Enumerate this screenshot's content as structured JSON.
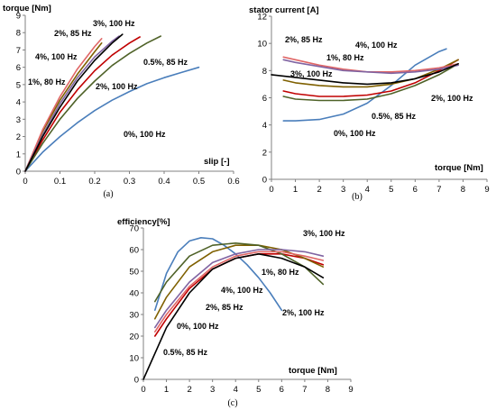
{
  "chart_data": [
    {
      "type": "line",
      "panel_label": "(a)",
      "ylabel": "torque [Nm]",
      "xlabel": "slip [-]",
      "xlim": [
        0,
        0.6
      ],
      "ylim": [
        0,
        9
      ],
      "xticks": [
        "0",
        "0.1",
        "0.2",
        "0.3",
        "0.4",
        "0.5",
        "0.6"
      ],
      "yticks": [
        "0",
        "1",
        "2",
        "3",
        "4",
        "5",
        "6",
        "7",
        "8",
        "9"
      ],
      "grid": false,
      "series": [
        {
          "name": "0%, 100 Hz",
          "color": "#4a7ebb",
          "x": [
            0,
            0.05,
            0.1,
            0.15,
            0.2,
            0.25,
            0.3,
            0.35,
            0.4,
            0.45,
            0.5
          ],
          "y": [
            0,
            1.1,
            2.0,
            2.8,
            3.5,
            4.1,
            4.6,
            5.05,
            5.4,
            5.7,
            6.0
          ]
        },
        {
          "name": "0.5%, 85 Hz",
          "color": "#c00000",
          "x": [
            0,
            0.05,
            0.1,
            0.15,
            0.2,
            0.25,
            0.3,
            0.33
          ],
          "y": [
            0,
            1.8,
            3.4,
            4.7,
            5.8,
            6.7,
            7.4,
            7.75
          ]
        },
        {
          "name": "1%, 80 Hz",
          "color": "#7f6000",
          "x": [
            0,
            0.05,
            0.1,
            0.15,
            0.2,
            0.22
          ],
          "y": [
            0,
            2.3,
            4.1,
            5.6,
            6.9,
            7.4
          ]
        },
        {
          "name": "2%, 100 Hz",
          "color": "#4f6228",
          "x": [
            0,
            0.05,
            0.1,
            0.15,
            0.2,
            0.25,
            0.3,
            0.35,
            0.39
          ],
          "y": [
            0,
            1.6,
            3.0,
            4.2,
            5.2,
            6.1,
            6.8,
            7.4,
            7.8
          ]
        },
        {
          "name": "2%, 85 Hz",
          "color": "#e06666",
          "x": [
            0,
            0.05,
            0.1,
            0.15,
            0.2,
            0.22
          ],
          "y": [
            0,
            2.4,
            4.3,
            5.9,
            7.2,
            7.65
          ]
        },
        {
          "name": "3%, 100 Hz",
          "color": "#8064a2",
          "x": [
            0,
            0.05,
            0.1,
            0.15,
            0.2,
            0.25,
            0.27
          ],
          "y": [
            0,
            2.1,
            3.9,
            5.4,
            6.6,
            7.5,
            7.8
          ]
        },
        {
          "name": "4%, 100 Hz",
          "color": "#000000",
          "x": [
            0,
            0.05,
            0.1,
            0.15,
            0.2,
            0.25,
            0.28
          ],
          "y": [
            0,
            2.0,
            3.7,
            5.2,
            6.4,
            7.4,
            7.9
          ]
        }
      ],
      "annotations": [
        "3%, 100 Hz",
        "2%, 85 Hz",
        "4%, 100 Hz",
        "0.5%, 85 Hz",
        "1%, 80 Hz",
        "2%, 100 Hz",
        "0%, 100 Hz"
      ]
    },
    {
      "type": "line",
      "panel_label": "(b)",
      "ylabel": "stator current [A]",
      "xlabel": "torque [Nm]",
      "xlim": [
        0,
        9
      ],
      "ylim": [
        0,
        12
      ],
      "xticks": [
        "0",
        "1",
        "2",
        "3",
        "4",
        "5",
        "6",
        "7",
        "8",
        "9"
      ],
      "yticks": [
        "0",
        "2",
        "4",
        "6",
        "8",
        "10",
        "12"
      ],
      "grid": false,
      "series": [
        {
          "name": "0%, 100 Hz",
          "color": "#4a7ebb",
          "x": [
            0.5,
            1,
            2,
            3,
            4,
            5,
            6,
            7,
            7.3
          ],
          "y": [
            4.3,
            4.3,
            4.4,
            4.8,
            5.6,
            6.9,
            8.4,
            9.4,
            9.6
          ]
        },
        {
          "name": "0.5%, 85 Hz",
          "color": "#c00000",
          "x": [
            0.5,
            1,
            2,
            3,
            4,
            5,
            6,
            7,
            7.8
          ],
          "y": [
            6.5,
            6.3,
            6.1,
            6.1,
            6.2,
            6.5,
            7.1,
            8.0,
            8.8
          ]
        },
        {
          "name": "1%, 80 Hz",
          "color": "#7f6000",
          "x": [
            0.5,
            1,
            2,
            3,
            4,
            5,
            6,
            7,
            7.8
          ],
          "y": [
            7.3,
            7.1,
            6.9,
            6.8,
            6.8,
            7.0,
            7.4,
            8.1,
            8.8
          ]
        },
        {
          "name": "2%, 100 Hz",
          "color": "#4f6228",
          "x": [
            0.5,
            1,
            2,
            3,
            4,
            5,
            6,
            7,
            7.8
          ],
          "y": [
            6.1,
            5.9,
            5.8,
            5.8,
            5.9,
            6.3,
            6.9,
            7.7,
            8.5
          ]
        },
        {
          "name": "2%, 85 Hz",
          "color": "#e06666",
          "x": [
            0.5,
            1,
            2,
            3,
            4,
            5,
            6,
            7,
            7.8
          ],
          "y": [
            9.0,
            8.8,
            8.4,
            8.1,
            7.9,
            7.9,
            8.0,
            8.2,
            8.5
          ]
        },
        {
          "name": "3%, 100 Hz",
          "color": "#8064a2",
          "x": [
            0.5,
            1,
            2,
            3,
            4,
            5,
            6,
            7,
            7.8
          ],
          "y": [
            8.8,
            8.6,
            8.3,
            8.0,
            7.9,
            7.8,
            7.9,
            8.1,
            8.4
          ]
        },
        {
          "name": "4%, 100 Hz",
          "color": "#000000",
          "x": [
            0,
            1,
            2,
            3,
            4,
            5,
            6,
            7,
            7.8
          ],
          "y": [
            7.7,
            7.5,
            7.3,
            7.1,
            7.0,
            7.1,
            7.4,
            7.9,
            8.5
          ]
        }
      ],
      "annotations": [
        "2%, 85 Hz",
        "4%, 100 Hz",
        "1%, 80 Hz",
        "3%, 100 Hz",
        "2%, 100 Hz",
        "0.5%, 85 Hz",
        "0%, 100 Hz"
      ]
    },
    {
      "type": "line",
      "panel_label": "(c)",
      "ylabel": "efficiency[%]",
      "xlabel": "torque [Nm]",
      "xlim": [
        0,
        9
      ],
      "ylim": [
        0,
        70
      ],
      "xticks": [
        "0",
        "1",
        "2",
        "3",
        "4",
        "5",
        "6",
        "7",
        "8",
        "9"
      ],
      "yticks": [
        "0",
        "10",
        "20",
        "30",
        "40",
        "50",
        "60",
        "70"
      ],
      "grid": false,
      "series": [
        {
          "name": "0%, 100 Hz",
          "color": "#4a7ebb",
          "x": [
            0.5,
            1,
            1.5,
            2,
            2.5,
            3,
            3.5,
            4,
            4.5,
            5,
            5.5,
            6
          ],
          "y": [
            32,
            49,
            59,
            64,
            65.5,
            65,
            62,
            58,
            53,
            47,
            40,
            32
          ]
        },
        {
          "name": "0.5%, 85 Hz",
          "color": "#c00000",
          "x": [
            0.5,
            1,
            2,
            3,
            4,
            5,
            6,
            7,
            7.8
          ],
          "y": [
            20,
            28,
            42,
            51,
            56,
            58,
            58,
            56,
            53
          ]
        },
        {
          "name": "1%, 80 Hz",
          "color": "#7f6000",
          "x": [
            0.5,
            1,
            2,
            3,
            4,
            5,
            6,
            7,
            7.8
          ],
          "y": [
            28,
            38,
            52,
            59,
            62,
            62,
            60,
            56,
            52
          ]
        },
        {
          "name": "2%, 100 Hz",
          "color": "#4f6228",
          "x": [
            0.5,
            1,
            2,
            3,
            4,
            5,
            6,
            7,
            7.8
          ],
          "y": [
            36,
            45,
            57,
            62,
            63,
            62,
            58,
            52,
            44
          ]
        },
        {
          "name": "2%, 85 Hz",
          "color": "#e06666",
          "x": [
            0.5,
            1,
            2,
            3,
            4,
            5,
            6,
            7,
            7.8
          ],
          "y": [
            22,
            30,
            43,
            52,
            57,
            59,
            59,
            57,
            55
          ]
        },
        {
          "name": "3%, 100 Hz",
          "color": "#8064a2",
          "x": [
            0.5,
            1,
            2,
            3,
            4,
            5,
            6,
            7,
            7.8
          ],
          "y": [
            24,
            32,
            45,
            54,
            58,
            60,
            60,
            59,
            57
          ]
        },
        {
          "name": "4%, 100 Hz",
          "color": "#000000",
          "x": [
            0,
            1,
            2,
            3,
            4,
            5,
            6,
            7,
            7.8
          ],
          "y": [
            0,
            24,
            40,
            51,
            56,
            58,
            56,
            52,
            47
          ]
        }
      ],
      "annotations": [
        "3%, 100 Hz",
        "1%, 80 Hz",
        "4%, 100 Hz",
        "2%, 85 Hz",
        "2%, 100 Hz",
        "0%, 100 Hz",
        "0.5%, 85 Hz"
      ]
    }
  ]
}
